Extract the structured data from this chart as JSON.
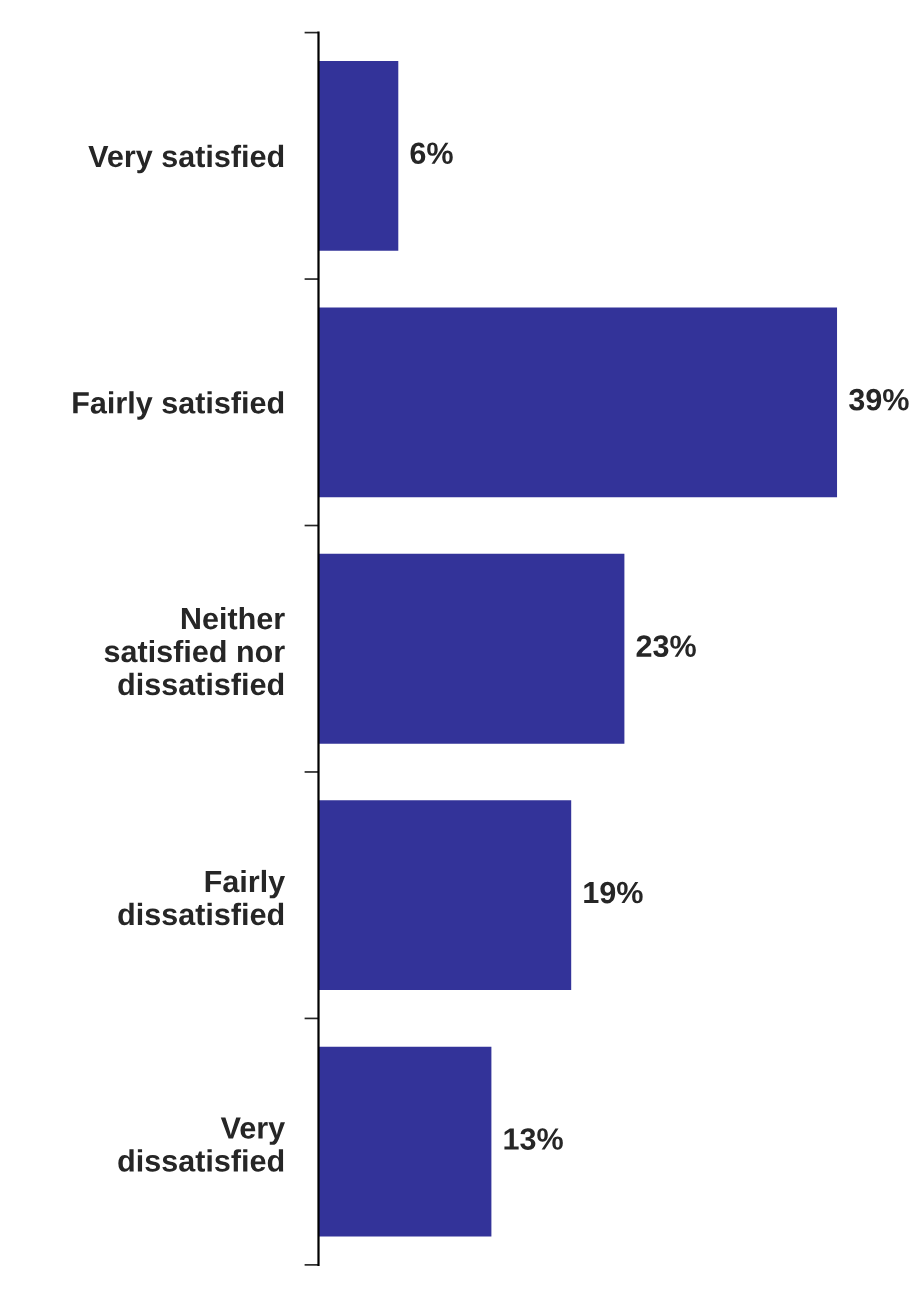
{
  "chart_data": {
    "type": "bar",
    "orientation": "horizontal",
    "categories": [
      "Very satisfied",
      "Fairly satisfied",
      "Neither\nsatisfied nor\ndissatisfied",
      "Fairly\ndissatisfied",
      "Very\ndissatisfied"
    ],
    "values": [
      6,
      39,
      23,
      19,
      13
    ],
    "value_labels": [
      "6%",
      "39%",
      "23%",
      "19%",
      "13%"
    ],
    "color": "#333399",
    "grid": false,
    "legend": false
  }
}
